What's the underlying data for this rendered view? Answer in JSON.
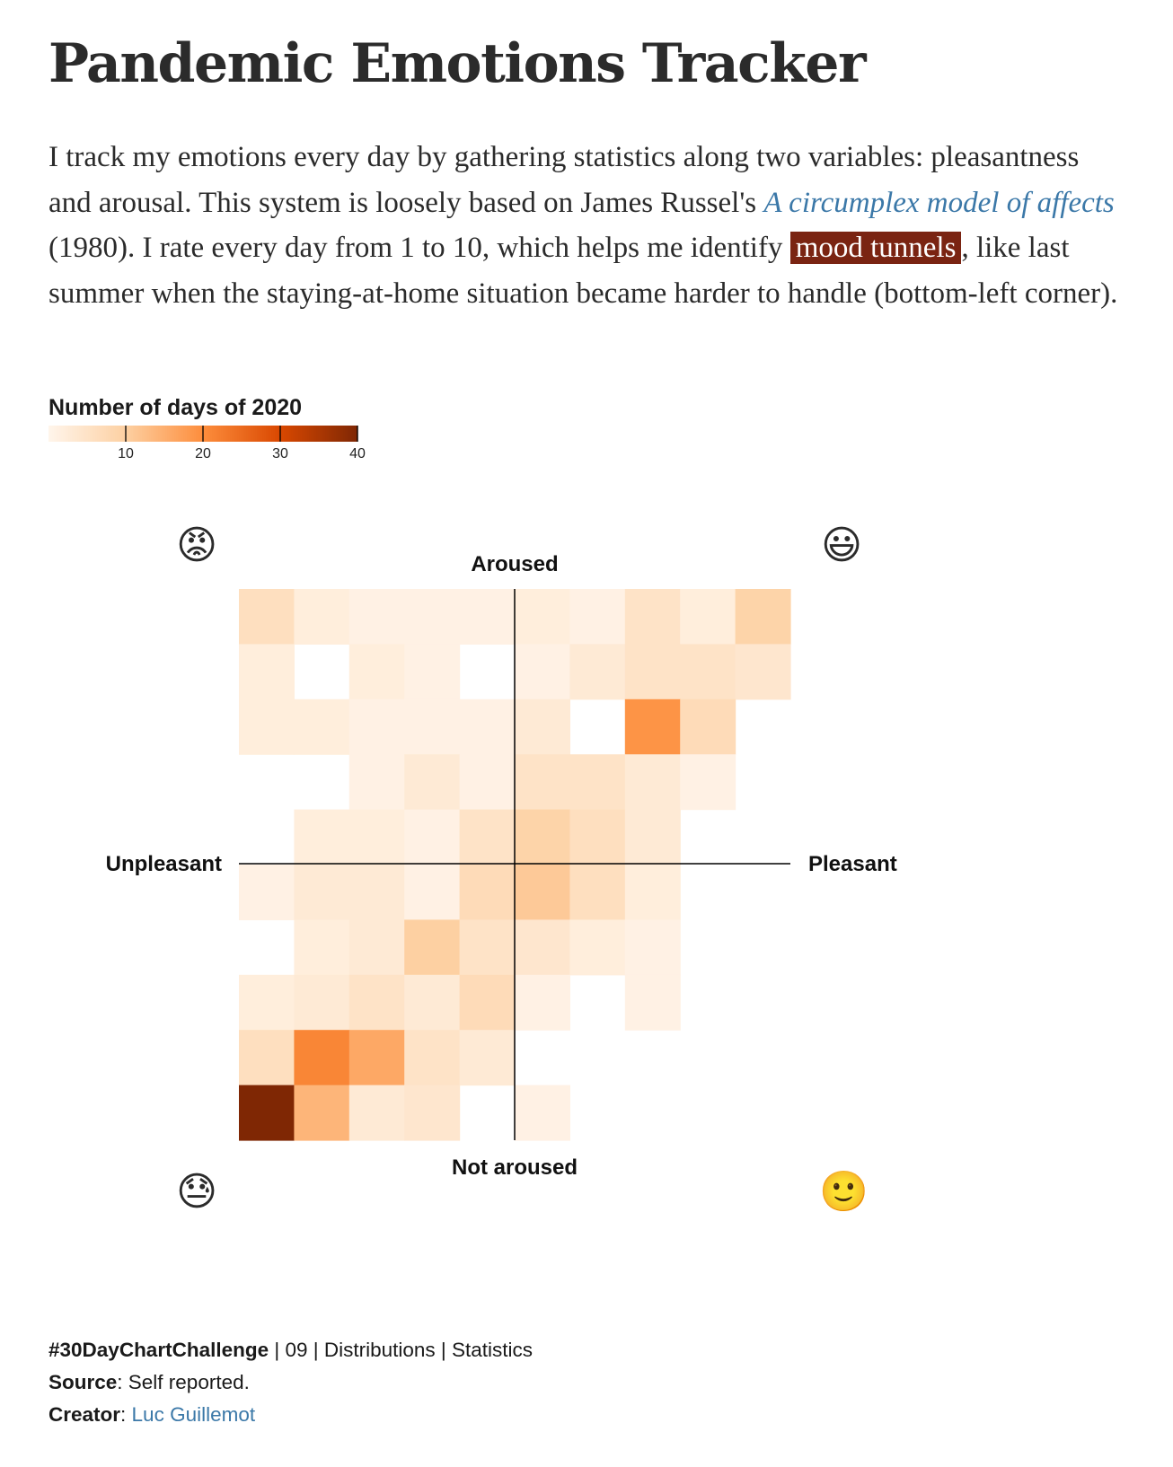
{
  "header": {
    "title": "Pandemic Emotions Tracker"
  },
  "intro": {
    "part1": "I track my emotions every day by gathering statistics along two variables: pleasantness and arousal. This system is loosely based on James Russel's ",
    "link_text": "A circumplex model of affects",
    "part2": " (1980). I rate every day from 1 to 10, which helps me identify ",
    "highlight": "mood tunnels",
    "part3": ", like last summer when the staying-at-home situation became harder to handle (bottom-left corner)."
  },
  "legend": {
    "title": "Number of days of 2020",
    "ticks": [
      10,
      20,
      30,
      40
    ],
    "domain": [
      0,
      40
    ]
  },
  "colors": {
    "scale": [
      "#fff5eb",
      "#fdd0a2",
      "#fd8d3c",
      "#d94801",
      "#7f2704"
    ],
    "axis": "#000000",
    "link": "#3b78a8",
    "highlight_bg": "#7a2412"
  },
  "emojis": {
    "top_left": "😡",
    "top_right": "😃",
    "bottom_left": "😓",
    "bottom_right": "🙂"
  },
  "chart_data": {
    "type": "heatmap",
    "x_label_left": "Unpleasant",
    "x_label_right": "Pleasant",
    "y_label_top": "Aroused",
    "y_label_bottom": "Not aroused",
    "x_levels": [
      1,
      2,
      3,
      4,
      5,
      6,
      7,
      8,
      9,
      10
    ],
    "y_levels": [
      1,
      2,
      3,
      4,
      5,
      6,
      7,
      8,
      9,
      10
    ],
    "x_axis": "pleasantness",
    "y_axis": "arousal",
    "value_label": "Number of days of 2020",
    "value_range": [
      0,
      40
    ],
    "rows_from_top_y": [
      10,
      9,
      8,
      7,
      6,
      5,
      4,
      3,
      2,
      1
    ],
    "values": [
      [
        6,
        2,
        1,
        1,
        1,
        2,
        1,
        5,
        2,
        9
      ],
      [
        2,
        0,
        2,
        1,
        0,
        1,
        3,
        5,
        5,
        4
      ],
      [
        2,
        2,
        1,
        1,
        1,
        3,
        0,
        19,
        7,
        0
      ],
      [
        0,
        0,
        1,
        3,
        1,
        5,
        5,
        3,
        1,
        0
      ],
      [
        0,
        2,
        2,
        1,
        5,
        9,
        6,
        3,
        0,
        0
      ],
      [
        1,
        3,
        3,
        1,
        7,
        11,
        6,
        2,
        0,
        0
      ],
      [
        0,
        2,
        3,
        10,
        5,
        4,
        2,
        1,
        0,
        0
      ],
      [
        2,
        3,
        5,
        3,
        7,
        1,
        0,
        1,
        0,
        0
      ],
      [
        6,
        21,
        16,
        5,
        3,
        0,
        0,
        0,
        0,
        0
      ],
      [
        40,
        14,
        3,
        4,
        0,
        1,
        0,
        0,
        0,
        0
      ]
    ]
  },
  "footer": {
    "challenge_tag": "#30DayChartChallenge",
    "challenge_rest": " | 09 | Distributions | Statistics",
    "source_label": "Source",
    "source_value": ": Self reported.",
    "creator_label": "Creator",
    "creator_sep": ": ",
    "creator_name": "Luc Guillemot"
  }
}
